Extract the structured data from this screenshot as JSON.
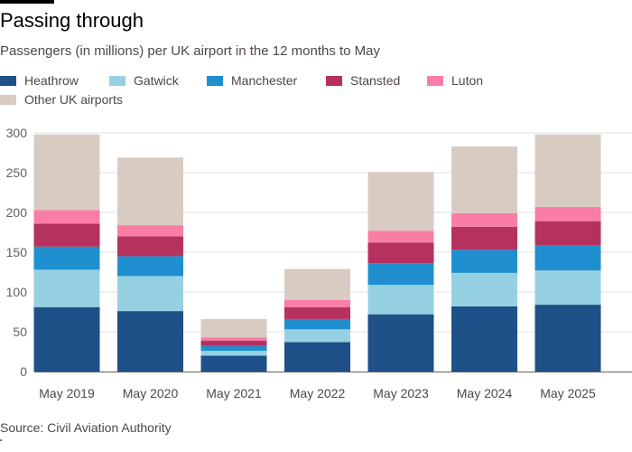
{
  "title": "Passing through",
  "subtitle": "Passengers (in millions) per UK airport in the 12 months to May",
  "source": "Source: Civil Aviation Authority",
  "chart_data": {
    "type": "bar",
    "stacked": true,
    "title": "Passing through",
    "subtitle": "Passengers (in millions) per UK airport in the 12 months to May",
    "xlabel": "",
    "ylabel": "",
    "ylim": [
      0,
      300
    ],
    "yticks": [
      "0",
      "50",
      "100",
      "150",
      "200",
      "250",
      "300"
    ],
    "grid": true,
    "legend_position": "top-left",
    "categories": [
      "May 2019",
      "May 2020",
      "May 2021",
      "May 2022",
      "May 2023",
      "May 2024",
      "May 2025"
    ],
    "series": [
      {
        "name": "Heathrow",
        "color": "#1f5088",
        "values": [
          81,
          76,
          20,
          37,
          72,
          82,
          84
        ]
      },
      {
        "name": "Gatwick",
        "color": "#96d1e3",
        "values": [
          47,
          44,
          6,
          16,
          37,
          42,
          43
        ]
      },
      {
        "name": "Manchester",
        "color": "#1f8fcf",
        "values": [
          29,
          25,
          6,
          13,
          27,
          29,
          32
        ]
      },
      {
        "name": "Stansted",
        "color": "#b5325f",
        "values": [
          29,
          25,
          7,
          15,
          26,
          29,
          30
        ]
      },
      {
        "name": "Luton",
        "color": "#fa7da6",
        "values": [
          17,
          14,
          4,
          9,
          15,
          17,
          18
        ]
      },
      {
        "name": "Other UK airports",
        "color": "#d8ccc2",
        "values": [
          95,
          85,
          23,
          39,
          74,
          84,
          91
        ]
      }
    ]
  }
}
